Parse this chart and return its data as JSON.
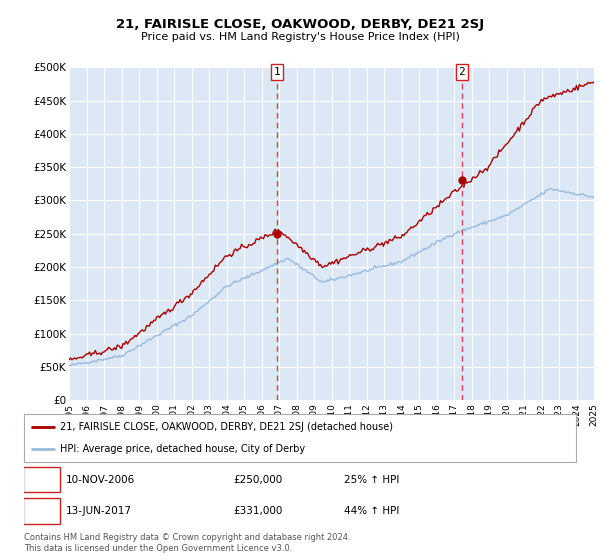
{
  "title": "21, FAIRISLE CLOSE, OAKWOOD, DERBY, DE21 2SJ",
  "subtitle": "Price paid vs. HM Land Registry's House Price Index (HPI)",
  "ylim": [
    0,
    500000
  ],
  "xlim": [
    1995,
    2025
  ],
  "yticks": [
    0,
    50000,
    100000,
    150000,
    200000,
    250000,
    300000,
    350000,
    400000,
    450000,
    500000
  ],
  "ytick_labels": [
    "£0",
    "£50K",
    "£100K",
    "£150K",
    "£200K",
    "£250K",
    "£300K",
    "£350K",
    "£400K",
    "£450K",
    "£500K"
  ],
  "bg_color": "#dce8f5",
  "grid_color": "#ffffff",
  "red_line_color": "#aa0000",
  "blue_line_color": "#99bbdd",
  "vline_color": "#dd4444",
  "marker1_x": 2006.87,
  "marker2_x": 2017.45,
  "marker1_price": 250000,
  "marker2_price": 331000,
  "transaction1": {
    "label": "1",
    "date": "10-NOV-2006",
    "price": "£250,000",
    "hpi": "25% ↑ HPI"
  },
  "transaction2": {
    "label": "2",
    "date": "13-JUN-2017",
    "price": "£331,000",
    "hpi": "44% ↑ HPI"
  },
  "legend_line1": "21, FAIRISLE CLOSE, OAKWOOD, DERBY, DE21 2SJ (detached house)",
  "legend_line2": "HPI: Average price, detached house, City of Derby",
  "footer": "Contains HM Land Registry data © Crown copyright and database right 2024.\nThis data is licensed under the Open Government Licence v3.0."
}
